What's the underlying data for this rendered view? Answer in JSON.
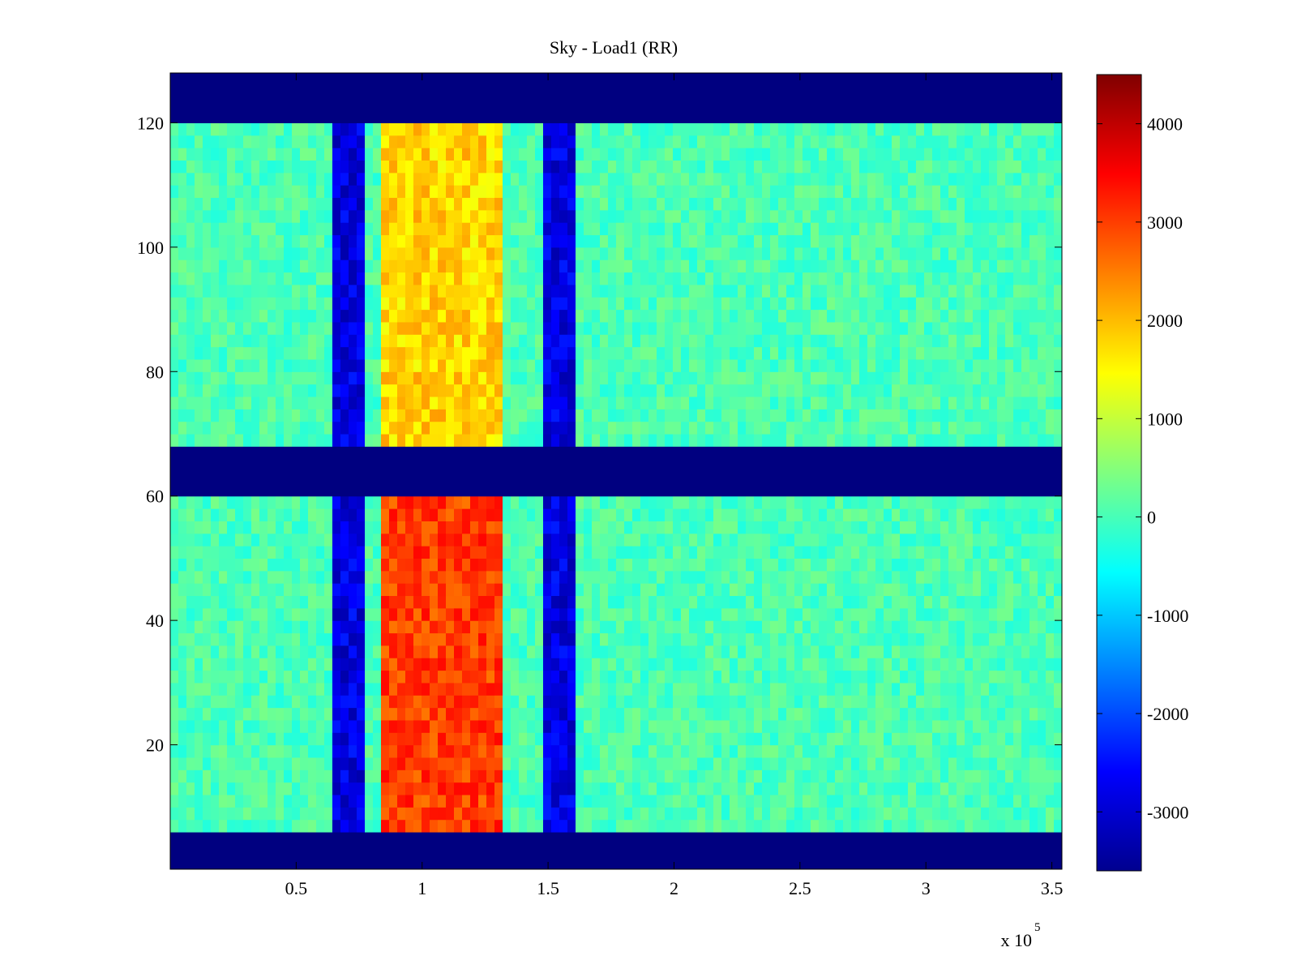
{
  "chart_data": {
    "type": "heatmap",
    "title": "Sky - Load1 (RR)",
    "xlabel": "",
    "ylabel": "",
    "colormap": "jet",
    "grid": false,
    "xlim": [
      0,
      354000
    ],
    "ylim": [
      0,
      128
    ],
    "x_multiplier_label": "x 10",
    "x_multiplier_exponent": "5",
    "x_ticks": [
      {
        "value": 50000,
        "label": "0.5"
      },
      {
        "value": 100000,
        "label": "1"
      },
      {
        "value": 150000,
        "label": "1.5"
      },
      {
        "value": 200000,
        "label": "2"
      },
      {
        "value": 250000,
        "label": "2.5"
      },
      {
        "value": 300000,
        "label": "3"
      },
      {
        "value": 350000,
        "label": "3.5"
      }
    ],
    "y_ticks": [
      {
        "value": 20,
        "label": "20"
      },
      {
        "value": 40,
        "label": "40"
      },
      {
        "value": 60,
        "label": "60"
      },
      {
        "value": 80,
        "label": "80"
      },
      {
        "value": 100,
        "label": "100"
      },
      {
        "value": 120,
        "label": "120"
      }
    ],
    "colorbar": {
      "range": [
        -3600,
        4500
      ],
      "ticks": [
        {
          "value": 4000,
          "label": "4000"
        },
        {
          "value": 3000,
          "label": "3000"
        },
        {
          "value": 2000,
          "label": "2000"
        },
        {
          "value": 1000,
          "label": "1000"
        },
        {
          "value": 0,
          "label": "0"
        },
        {
          "value": -1000,
          "label": "-1000"
        },
        {
          "value": -2000,
          "label": "-2000"
        },
        {
          "value": -3000,
          "label": "-3000"
        }
      ]
    },
    "flagged_channel_bands": [
      [
        0,
        7
      ],
      [
        61,
        68
      ],
      [
        121,
        128
      ]
    ],
    "features": [
      {
        "x_range": [
          65000,
          76000
        ],
        "channels": [
          7,
          121
        ],
        "value": -2800
      },
      {
        "x_range": [
          84000,
          132000
        ],
        "channels": [
          7,
          61
        ],
        "value": 3000
      },
      {
        "x_range": [
          84000,
          132000
        ],
        "channels": [
          68,
          121
        ],
        "value": 1800
      },
      {
        "x_range": [
          149000,
          160000
        ],
        "channels": [
          7,
          121
        ],
        "value": -2800
      }
    ],
    "background_value": 0
  }
}
